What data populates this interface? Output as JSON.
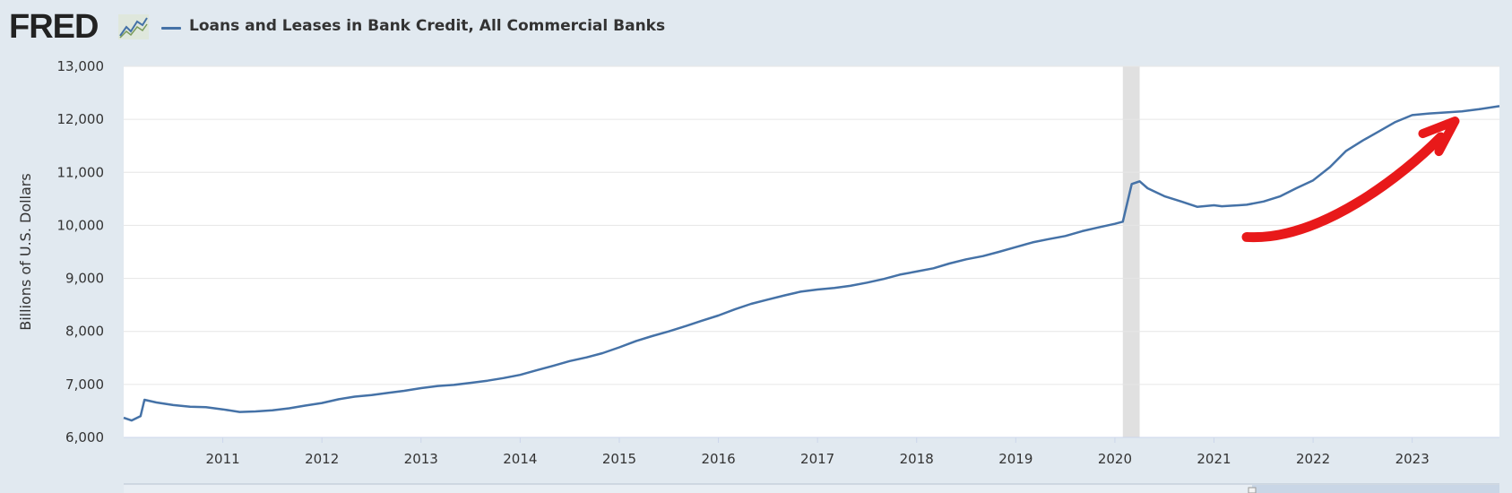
{
  "header": {
    "logo_text": "FRED",
    "series_title": "Loans and Leases in Bank Credit, All Commercial Banks"
  },
  "colors": {
    "series_line": "#4572a7",
    "recession_band": "#e0e0e0",
    "annotation_arrow": "#e8191a",
    "page_background": "#e1e9f0",
    "plot_background": "#ffffff"
  },
  "annotation": {
    "type": "hand-drawn arrow",
    "color": "#e8191a",
    "from": {
      "x": 2021.33,
      "y": 9780
    },
    "to": {
      "x": 2023.45,
      "y": 11900
    }
  },
  "chart_data": {
    "type": "line",
    "title": "Loans and Leases in Bank Credit, All Commercial Banks",
    "xlabel": "",
    "ylabel": "Billions of U.S. Dollars",
    "ylim": [
      6000,
      13000
    ],
    "xlim": [
      2010.0,
      2023.88
    ],
    "y_ticks": [
      "6,000",
      "7,000",
      "8,000",
      "9,000",
      "10,000",
      "11,000",
      "12,000",
      "13,000"
    ],
    "y_tick_values": [
      6000,
      7000,
      8000,
      9000,
      10000,
      11000,
      12000,
      13000
    ],
    "x_ticks": [
      "2011",
      "2012",
      "2013",
      "2014",
      "2015",
      "2016",
      "2017",
      "2018",
      "2019",
      "2020",
      "2021",
      "2022",
      "2023"
    ],
    "x_tick_values": [
      2011,
      2012,
      2013,
      2014,
      2015,
      2016,
      2017,
      2018,
      2019,
      2020,
      2021,
      2022,
      2023
    ],
    "grid": true,
    "recession_shading": [
      [
        2020.08,
        2020.25
      ]
    ],
    "series": [
      {
        "name": "Loans and Leases in Bank Credit, All Commercial Banks",
        "x": [
          2010.0,
          2010.08,
          2010.17,
          2010.21,
          2010.33,
          2010.5,
          2010.67,
          2010.83,
          2011.0,
          2011.17,
          2011.33,
          2011.5,
          2011.67,
          2011.83,
          2012.0,
          2012.17,
          2012.33,
          2012.5,
          2012.67,
          2012.83,
          2013.0,
          2013.17,
          2013.33,
          2013.5,
          2013.67,
          2013.83,
          2014.0,
          2014.17,
          2014.33,
          2014.5,
          2014.67,
          2014.83,
          2015.0,
          2015.17,
          2015.33,
          2015.5,
          2015.67,
          2015.83,
          2016.0,
          2016.17,
          2016.33,
          2016.5,
          2016.67,
          2016.83,
          2017.0,
          2017.17,
          2017.33,
          2017.5,
          2017.67,
          2017.83,
          2018.0,
          2018.17,
          2018.33,
          2018.5,
          2018.67,
          2018.83,
          2019.0,
          2019.17,
          2019.33,
          2019.5,
          2019.67,
          2019.83,
          2020.0,
          2020.08,
          2020.17,
          2020.25,
          2020.33,
          2020.42,
          2020.5,
          2020.67,
          2020.83,
          2021.0,
          2021.08,
          2021.17,
          2021.25,
          2021.33,
          2021.5,
          2021.67,
          2021.83,
          2022.0,
          2022.17,
          2022.33,
          2022.5,
          2022.67,
          2022.83,
          2023.0,
          2023.17,
          2023.33,
          2023.5,
          2023.67,
          2023.88
        ],
        "values": [
          6370,
          6320,
          6400,
          6710,
          6660,
          6610,
          6580,
          6570,
          6530,
          6480,
          6490,
          6510,
          6550,
          6600,
          6650,
          6720,
          6770,
          6800,
          6840,
          6880,
          6930,
          6970,
          6990,
          7030,
          7070,
          7120,
          7180,
          7270,
          7350,
          7440,
          7510,
          7590,
          7700,
          7820,
          7910,
          8000,
          8100,
          8200,
          8300,
          8420,
          8520,
          8600,
          8680,
          8750,
          8790,
          8820,
          8860,
          8920,
          8990,
          9070,
          9130,
          9190,
          9280,
          9360,
          9420,
          9500,
          9590,
          9680,
          9740,
          9800,
          9890,
          9960,
          10030,
          10070,
          10780,
          10830,
          10700,
          10620,
          10550,
          10450,
          10350,
          10380,
          10360,
          10370,
          10380,
          10390,
          10450,
          10550,
          10700,
          10850,
          11100,
          11400,
          11600,
          11780,
          11950,
          12080,
          12110,
          12130,
          12150,
          12190,
          12250
        ]
      }
    ]
  }
}
